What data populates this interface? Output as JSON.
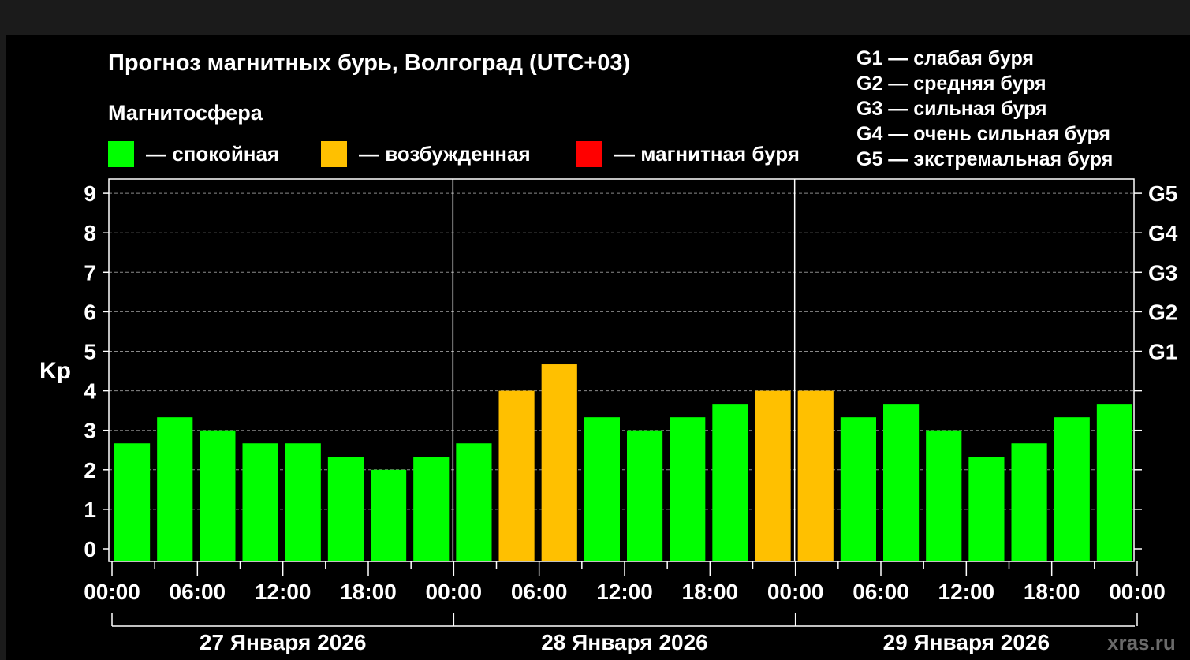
{
  "title": "Прогноз магнитных бурь, Волгоград (UTC+03)",
  "legend": {
    "heading": "Магнитосфера",
    "items": [
      {
        "label": "— спокойная",
        "color": "#00ff00"
      },
      {
        "label": "— возбужденная",
        "color": "#ffc000"
      },
      {
        "label": "— магнитная буря",
        "color": "#ff0000"
      }
    ]
  },
  "g_scale": [
    "G1 — слабая буря",
    "G2 — средняя буря",
    "G3 — сильная буря",
    "G4 — очень сильная буря",
    "G5 — экстремальная буря"
  ],
  "watermark": "xras.ru",
  "chart_data": {
    "type": "bar",
    "title": "Прогноз магнитных бурь, Волгоград (UTC+03)",
    "ylabel": "Kp",
    "ylim": [
      0,
      9.33
    ],
    "yticks": [
      "0",
      "1",
      "2",
      "3",
      "4",
      "5",
      "6",
      "7",
      "8",
      "9"
    ],
    "right_ticks": [
      {
        "y": 5,
        "label": "G1"
      },
      {
        "y": 6,
        "label": "G2"
      },
      {
        "y": 7,
        "label": "G3"
      },
      {
        "y": 8,
        "label": "G4"
      },
      {
        "y": 9,
        "label": "G5"
      }
    ],
    "xtick_labels": [
      "00:00",
      "06:00",
      "12:00",
      "18:00",
      "00:00",
      "06:00",
      "12:00",
      "18:00",
      "00:00",
      "06:00",
      "12:00",
      "18:00",
      "00:00"
    ],
    "days": [
      "27 Января 2026",
      "28 Января 2026",
      "29 Января 2026"
    ],
    "bar_interval_hours": 3,
    "values": [
      2.67,
      3.33,
      3.0,
      2.67,
      2.67,
      2.33,
      2.0,
      2.33,
      2.67,
      4.0,
      4.67,
      3.33,
      3.0,
      3.33,
      3.67,
      4.0,
      4.0,
      3.33,
      3.67,
      3.0,
      2.33,
      2.67,
      3.33,
      3.67
    ],
    "colors": [
      "#00ff00",
      "#00ff00",
      "#00ff00",
      "#00ff00",
      "#00ff00",
      "#00ff00",
      "#00ff00",
      "#00ff00",
      "#00ff00",
      "#ffc000",
      "#ffc000",
      "#00ff00",
      "#00ff00",
      "#00ff00",
      "#00ff00",
      "#ffc000",
      "#ffc000",
      "#00ff00",
      "#00ff00",
      "#00ff00",
      "#00ff00",
      "#00ff00",
      "#00ff00",
      "#00ff00"
    ],
    "grid": "dashed horizontal",
    "legend_position": "top"
  }
}
